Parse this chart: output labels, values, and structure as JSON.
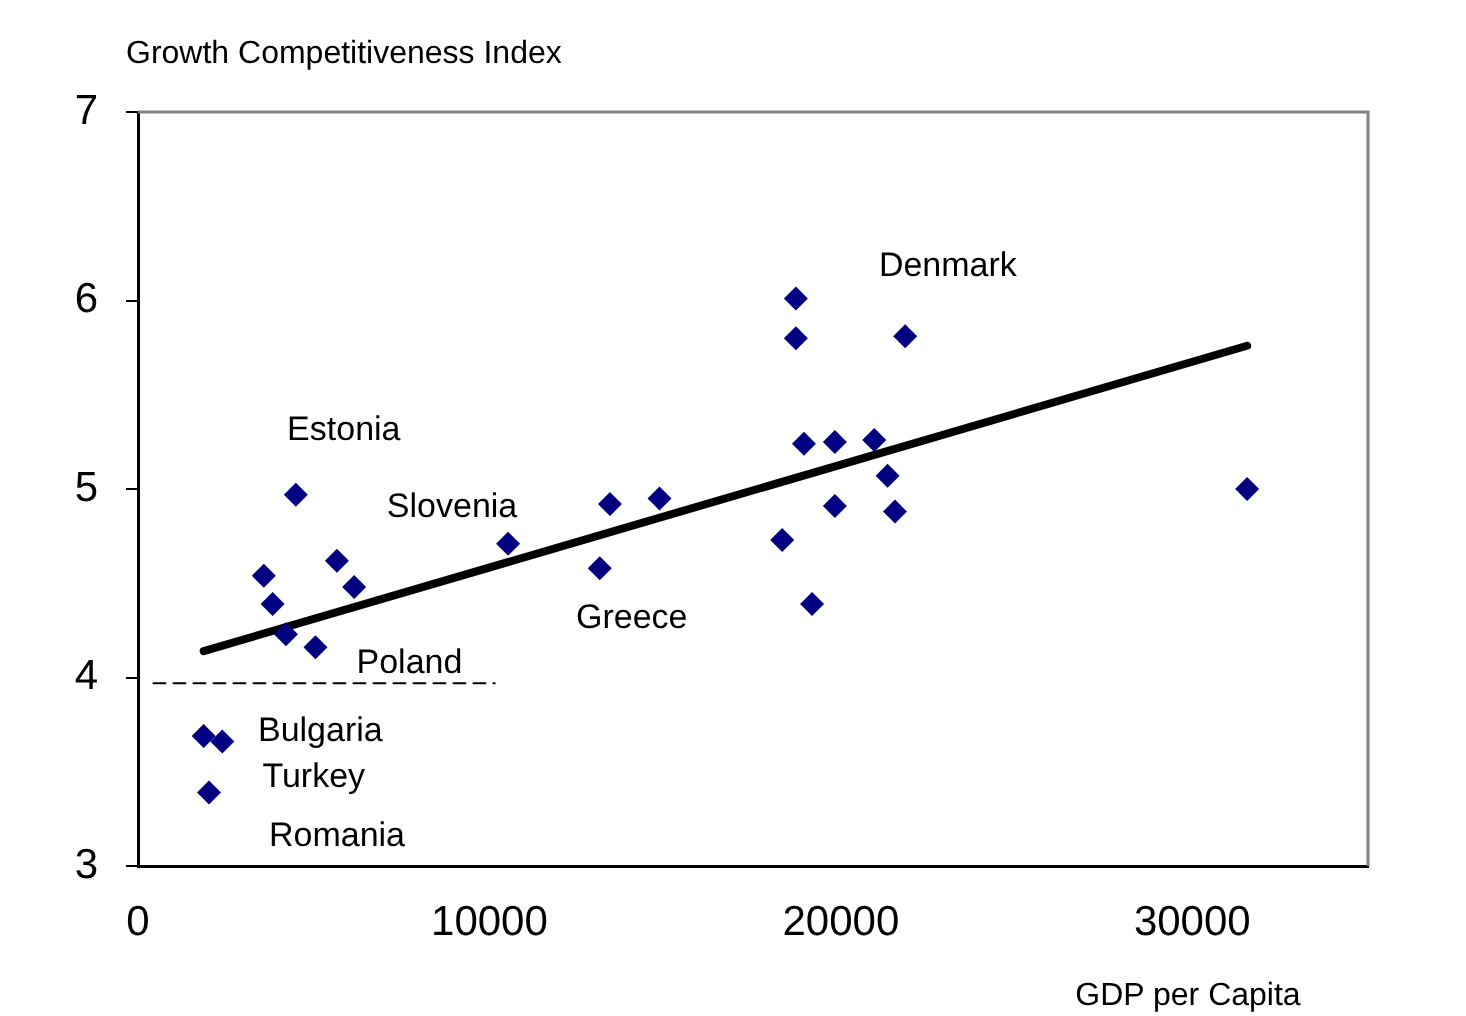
{
  "chart_data": {
    "type": "scatter",
    "ylabel": "Growth Competitiveness Index",
    "xlabel": "GDP per Capita",
    "xlim": [
      0,
      35000
    ],
    "xticks": [
      0,
      10000,
      20000,
      30000
    ],
    "ylim": [
      3,
      7
    ],
    "yticks": [
      3,
      4,
      5,
      6,
      7
    ],
    "grid": false,
    "legend": false,
    "marker": "diamond",
    "series": [
      {
        "type": "scatter",
        "color": "#000080",
        "x": [
          1870,
          2400,
          2020,
          3580,
          3830,
          4210,
          5050,
          4490,
          5660,
          6150,
          10530,
          13140,
          13430,
          14840,
          18330,
          18720,
          18720,
          18950,
          19180,
          19830,
          19830,
          20950,
          21330,
          21540,
          21830,
          31560
        ],
        "values": [
          3.69,
          3.66,
          3.39,
          4.54,
          4.39,
          4.23,
          4.16,
          4.97,
          4.62,
          4.48,
          4.71,
          4.58,
          4.92,
          4.95,
          4.73,
          6.01,
          5.8,
          5.24,
          4.39,
          5.25,
          4.91,
          5.26,
          5.07,
          4.88,
          5.81,
          5.0
        ]
      },
      {
        "type": "line",
        "color": "#000000",
        "marker": "none",
        "line_style": "solid",
        "x": [
          1870,
          31560
        ],
        "values": [
          4.14,
          5.76
        ]
      },
      {
        "type": "line",
        "color": "#000000",
        "marker": "none",
        "line_style": "dashed",
        "x": [
          440,
          10150
        ],
        "values": [
          3.97,
          3.97
        ]
      }
    ],
    "annotations": [
      {
        "text": "Denmark",
        "x": 18720,
        "y": 6.01
      },
      {
        "text": "Estonia",
        "x": 4490,
        "y": 4.97
      },
      {
        "text": "Slovenia",
        "x": 10530,
        "y": 4.71
      },
      {
        "text": "Greece",
        "x": 13140,
        "y": 4.58
      },
      {
        "text": "Poland",
        "x": 5050,
        "y": 4.16
      },
      {
        "text": "Bulgaria",
        "x": 2400,
        "y": 3.66
      },
      {
        "text": "Turkey",
        "x": 1870,
        "y": 3.69
      },
      {
        "text": "Romania",
        "x": 2020,
        "y": 3.39
      }
    ]
  }
}
